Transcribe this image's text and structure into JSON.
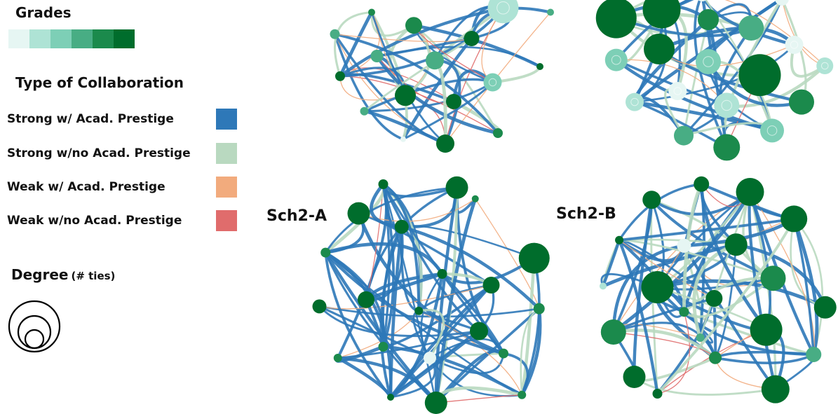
{
  "legend": {
    "grades": {
      "title": "Grades",
      "colors": [
        "#e6f6f3",
        "#aee3d5",
        "#7dcfb6",
        "#48ad84",
        "#1b8a4c",
        "#006d2c"
      ]
    },
    "collaboration": {
      "title": "Type of Collaboration",
      "items": [
        {
          "label": "Strong w/ Acad. Prestige",
          "color": "#2e78b8"
        },
        {
          "label": "Strong w/no Acad. Prestige",
          "color": "#b9d9c0"
        },
        {
          "label": "Weak w/ Acad. Prestige",
          "color": "#f2ab7d"
        },
        {
          "label": "Weak w/no Acad. Prestige",
          "color": "#e06c6c"
        }
      ]
    },
    "degree": {
      "title": "Degree",
      "subtitle": "(# ties)",
      "icon": "nested-circles-icon"
    }
  },
  "panels": [
    {
      "id": "top-left",
      "label": ""
    },
    {
      "id": "top-right",
      "label": ""
    },
    {
      "id": "sch2-a",
      "label": "Sch2-A"
    },
    {
      "id": "sch2-b",
      "label": "Sch2-B"
    }
  ]
}
